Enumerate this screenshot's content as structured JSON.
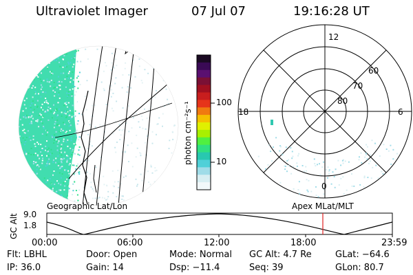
{
  "header": {
    "instrument": "Ultraviolet Imager",
    "date": "07 Jul 07",
    "time": "19:16:28 UT"
  },
  "colorbar": {
    "label": "photon cm⁻²s⁻¹",
    "ticks": [
      "100",
      "10"
    ],
    "colors": [
      "#1a0a22",
      "#3a0a55",
      "#5a1070",
      "#7a1035",
      "#a01020",
      "#c81e1e",
      "#e6341a",
      "#f07a10",
      "#f5c000",
      "#e0f000",
      "#a8f000",
      "#50f040",
      "#30e080",
      "#28c8b0",
      "#50d0d8",
      "#a0dce8",
      "#d8eef2",
      "#f2f8fa"
    ]
  },
  "polar": {
    "mlt_labels": [
      "12",
      "18",
      "6",
      "0"
    ],
    "lat_labels": [
      "60",
      "70",
      "80"
    ]
  },
  "panel_labels": {
    "left": "Geographic Lat/Lon",
    "right": "Apex MLat/MLT"
  },
  "altitude_plot": {
    "ylabel": "GC Alt",
    "yticks": [
      "9.0",
      "1.8"
    ],
    "xticks": [
      "00:00",
      "06:00",
      "12:00",
      "18:00",
      "23:59"
    ],
    "marker_color": "#e02020"
  },
  "info": {
    "flt": "Flt: LBHL",
    "ip": "IP: 36.0",
    "door": "Door: Open",
    "gain": "Gain: 14",
    "mode": "Mode: Normal",
    "dsp": "Dsp: −11.4",
    "gc_alt": "GC Alt: 4.7 Re",
    "seq": "Seq: 39",
    "glat": "GLat: −64.6",
    "glon": "GLon: 80.7"
  }
}
